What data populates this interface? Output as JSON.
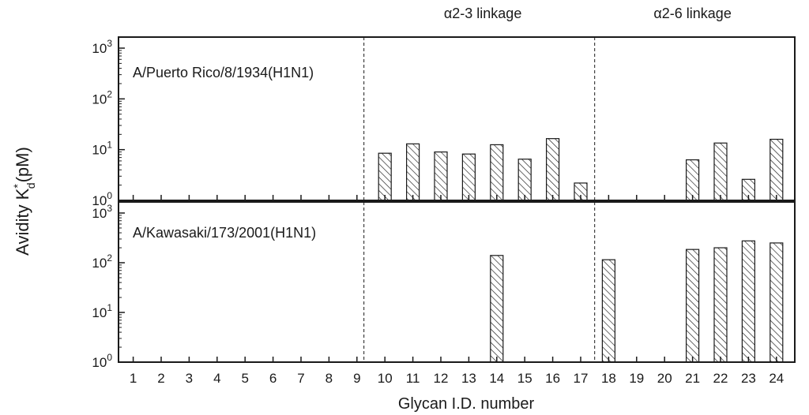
{
  "chart_data": {
    "type": "bar",
    "layout": "two stacked panels sharing x axis",
    "y_scale": "log",
    "ylabel": "Avidity K",
    "ylabel_sup": "*",
    "ylabel_sub": "d",
    "ylabel_unit": "(pM)",
    "xlabel": "Glycan I.D. number",
    "categories": [
      1,
      2,
      3,
      4,
      5,
      6,
      7,
      8,
      9,
      10,
      11,
      12,
      13,
      14,
      15,
      16,
      17,
      18,
      19,
      20,
      21,
      22,
      23,
      24
    ],
    "ylim": [
      1,
      1000
    ],
    "y_ticks": [
      {
        "base": "10",
        "exp": "0"
      },
      {
        "base": "10",
        "exp": "1"
      },
      {
        "base": "10",
        "exp": "2"
      },
      {
        "base": "10",
        "exp": "3"
      }
    ],
    "section_labels": [
      {
        "text": "α2-3 linkage",
        "from": 10,
        "to": 17
      },
      {
        "text": "α2-6 linkage",
        "from": 18,
        "to": 24
      }
    ],
    "separators": [
      9.25,
      17.5
    ],
    "grid": false,
    "bar_fill": "hatched",
    "colors": {
      "ink": "#1a1a1a",
      "background": "#ffffff"
    },
    "panels": [
      {
        "name": "A/Puerto Rico/8/1934(H1N1)",
        "values": [
          null,
          null,
          null,
          null,
          null,
          null,
          null,
          null,
          null,
          8.5,
          13,
          9,
          8.2,
          12.5,
          6.5,
          16.5,
          2.2,
          null,
          null,
          null,
          6.3,
          13.5,
          2.6,
          16
        ]
      },
      {
        "name": "A/Kawasaki/173/2001(H1N1)",
        "values": [
          null,
          null,
          null,
          null,
          null,
          null,
          null,
          null,
          null,
          null,
          null,
          null,
          null,
          140,
          null,
          null,
          null,
          115,
          null,
          null,
          185,
          200,
          275,
          250
        ]
      }
    ]
  }
}
